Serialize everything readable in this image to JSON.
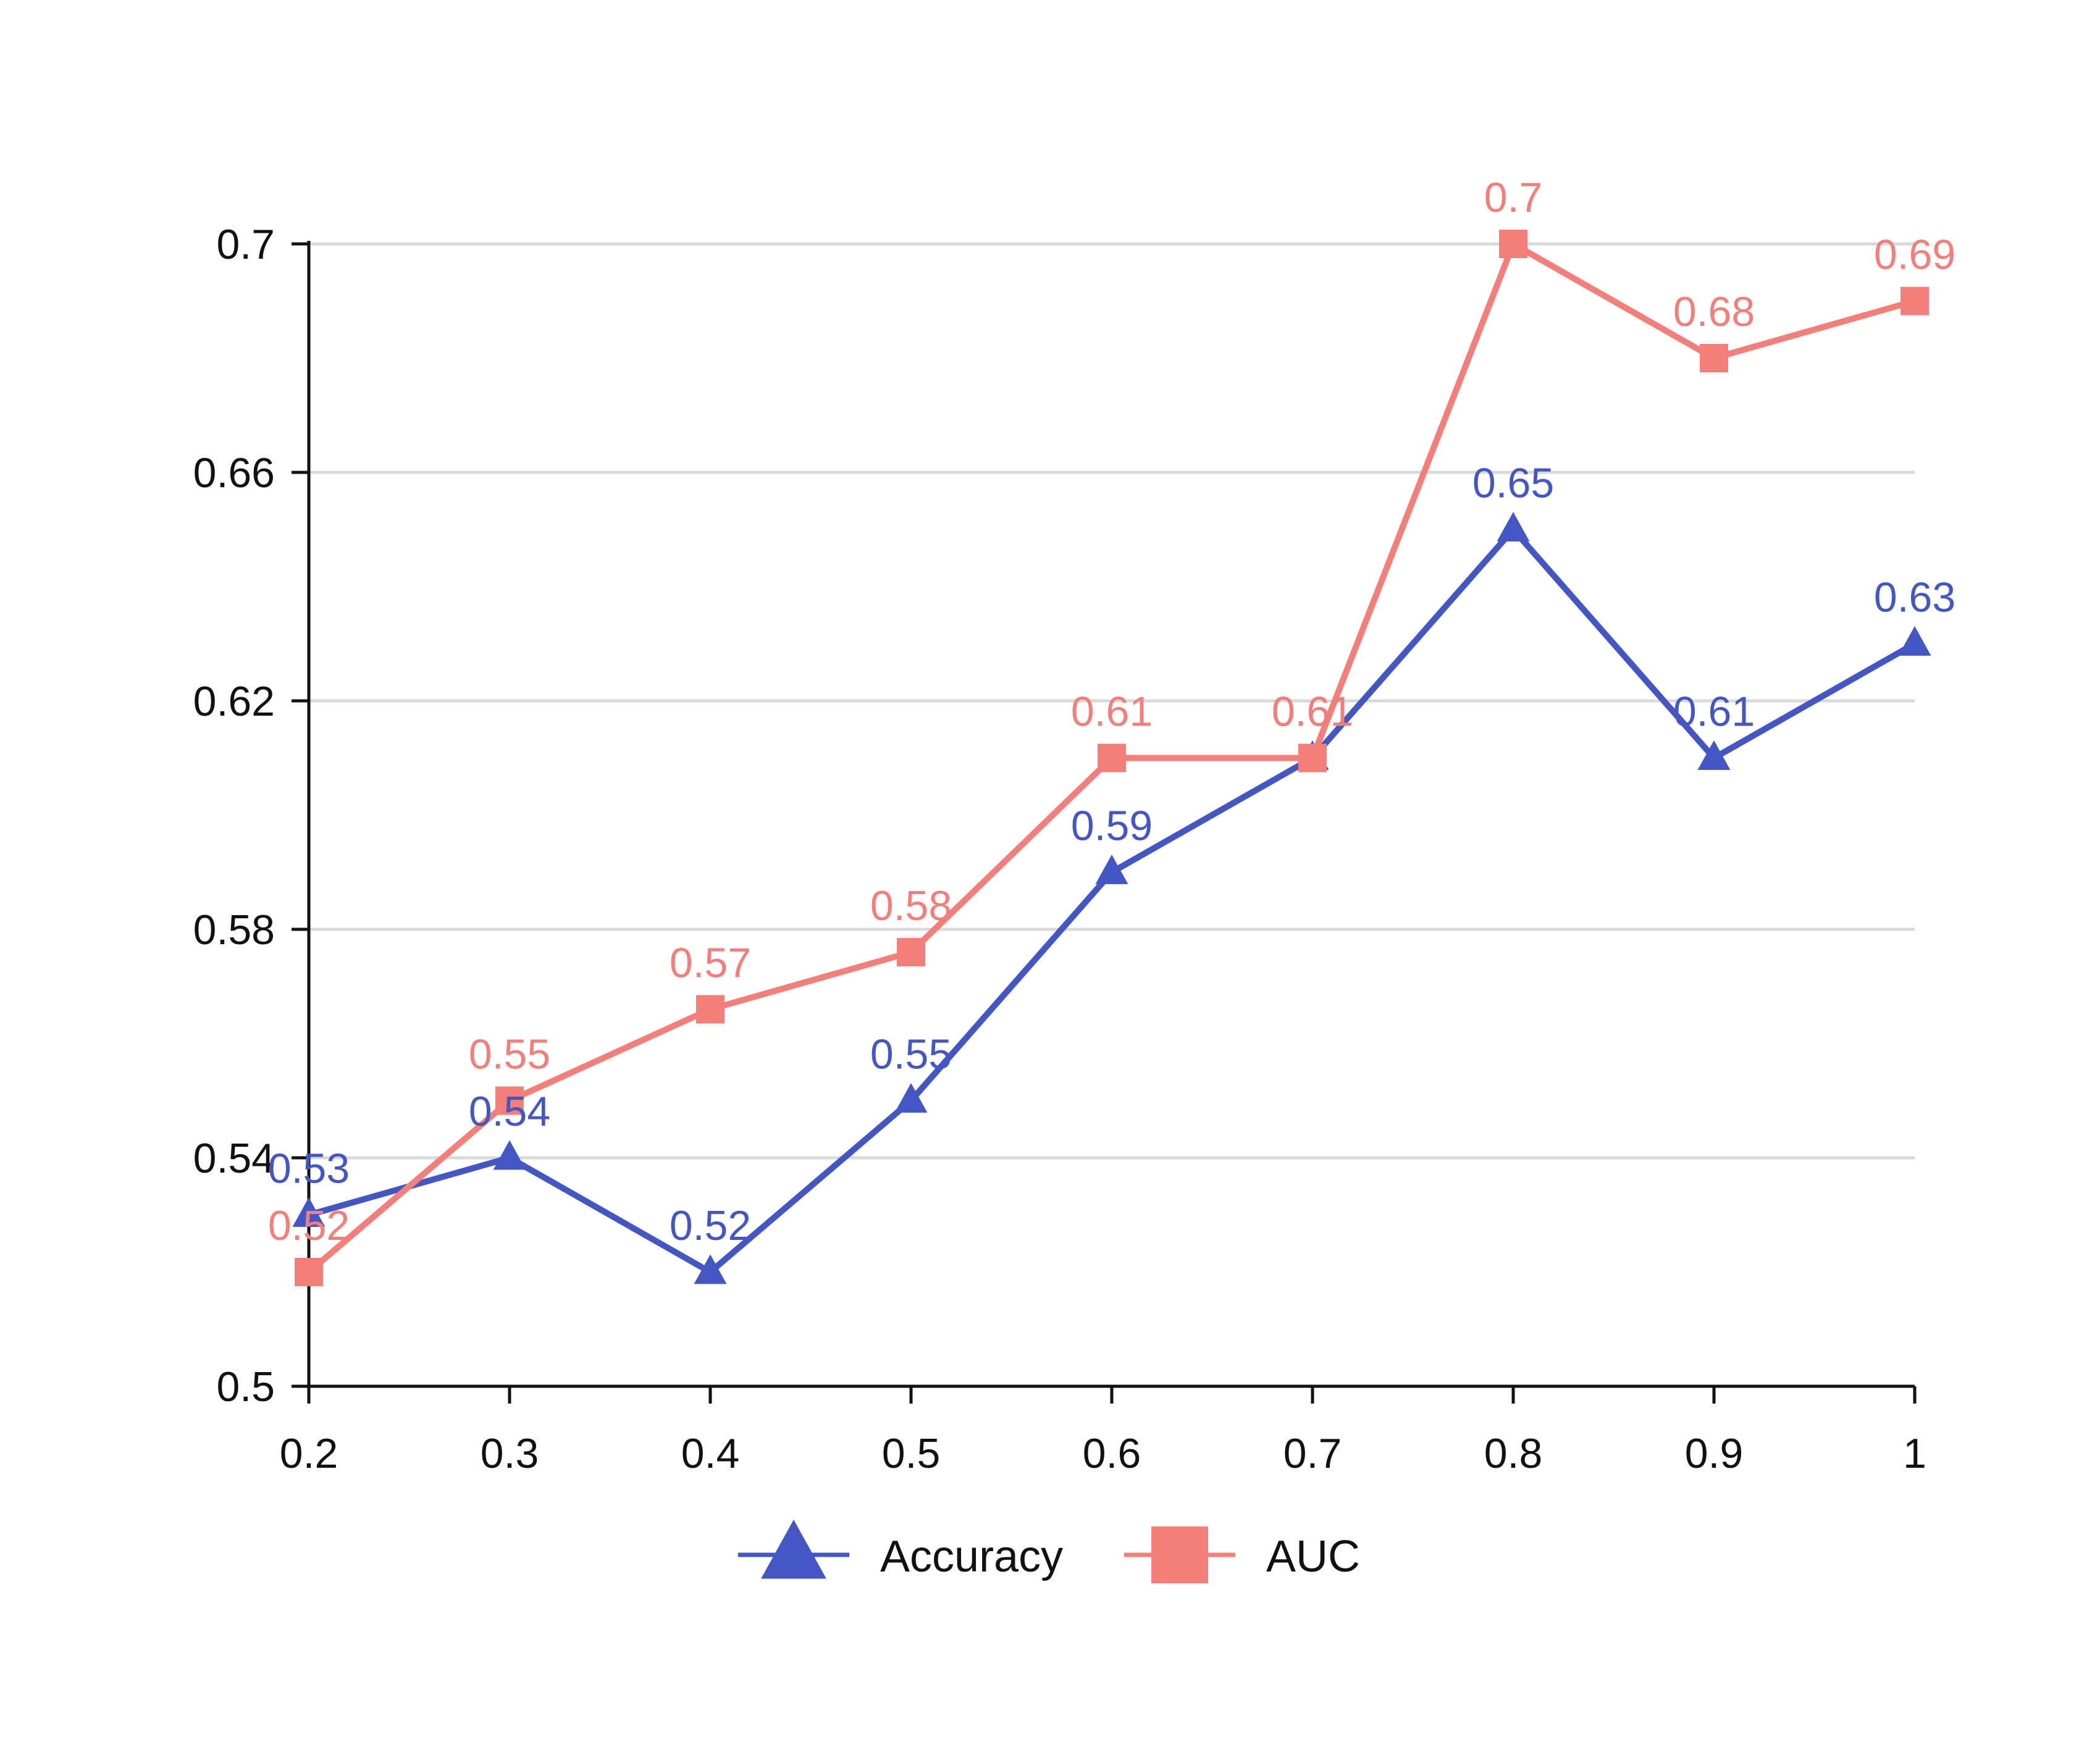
{
  "chart_data": {
    "type": "line",
    "title": "",
    "xlabel": "",
    "ylabel": "",
    "x": [
      0.2,
      0.3,
      0.4,
      0.5,
      0.6,
      0.7,
      0.8,
      0.9,
      1
    ],
    "x_tick_labels": [
      "0.2",
      "0.3",
      "0.4",
      "0.5",
      "0.6",
      "0.7",
      "0.8",
      "0.9",
      "1"
    ],
    "ylim": [
      0.5,
      0.7
    ],
    "y_ticks": [
      0.5,
      0.54,
      0.58,
      0.62,
      0.66,
      0.7
    ],
    "y_tick_labels": [
      "0.5",
      "0.54",
      "0.58",
      "0.62",
      "0.66",
      "0.7"
    ],
    "grid": "horizontal",
    "legend_position": "bottom-center",
    "series": [
      {
        "name": "Accuracy",
        "marker": "triangle",
        "color": "#4455c4",
        "values": [
          0.53,
          0.54,
          0.52,
          0.55,
          0.59,
          0.61,
          0.65,
          0.61,
          0.63
        ],
        "labels": [
          "0.53",
          "0.54",
          "0.52",
          "0.55",
          "0.59",
          "0.61",
          "0.65",
          "0.61",
          "0.63"
        ]
      },
      {
        "name": "AUC",
        "marker": "square",
        "color": "#f47e7a",
        "values": [
          0.52,
          0.55,
          0.566,
          0.576,
          0.61,
          0.61,
          0.7,
          0.68,
          0.69
        ],
        "labels": [
          "0.52",
          "0.55",
          "0.57",
          "0.58",
          "0.61",
          "0.61",
          "0.7",
          "0.68",
          "0.69"
        ]
      }
    ]
  }
}
